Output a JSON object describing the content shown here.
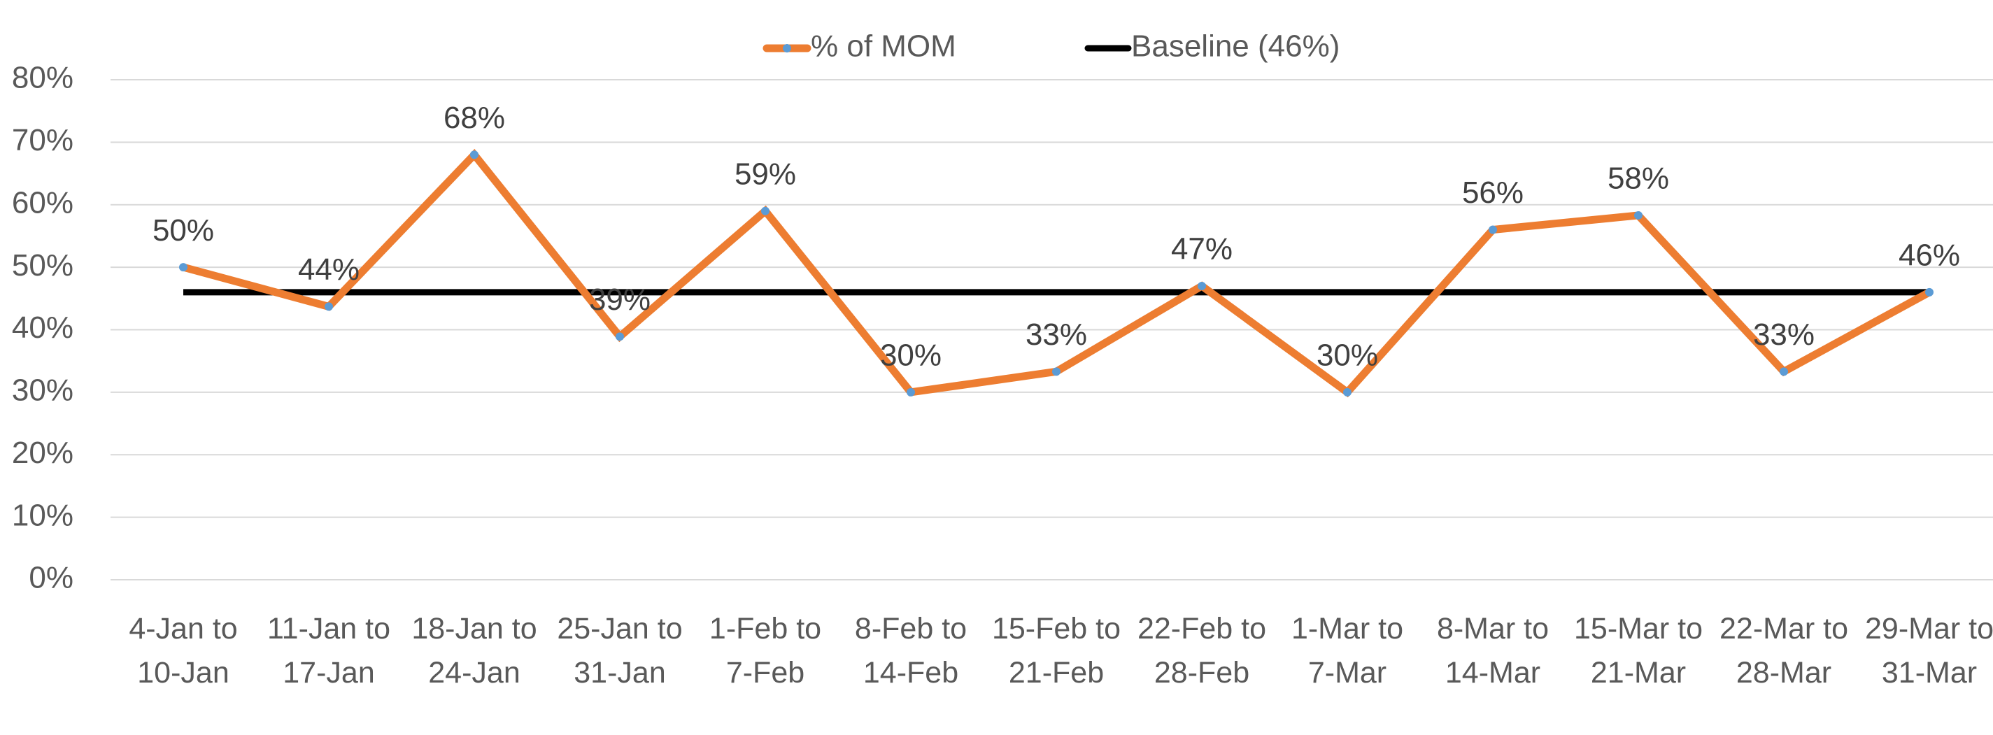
{
  "chart_data": {
    "type": "line",
    "categories": [
      "4-Jan to 10-Jan",
      "11-Jan to 17-Jan",
      "18-Jan to 24-Jan",
      "25-Jan to 31-Jan",
      "1-Feb to 7-Feb",
      "8-Feb to 14-Feb",
      "15-Feb to 21-Feb",
      "22-Feb to 28-Feb",
      "1-Mar to 7-Mar",
      "8-Mar to 14-Mar",
      "15-Mar to 21-Mar",
      "22-Mar to 28-Mar",
      "29-Mar to 31-Mar"
    ],
    "series": [
      {
        "name": "% of MOM",
        "color": "#ed7d31",
        "marker_color": "#5b9bd5",
        "values": [
          50,
          43.7,
          68,
          38.9,
          59,
          30,
          33.3,
          47,
          30,
          56,
          58.3,
          33.3,
          46
        ],
        "value_labels": [
          "50%",
          "44%",
          "68%",
          "39%",
          "59%",
          "30%",
          "33%",
          "47%",
          "30%",
          "56%",
          "58%",
          "33%",
          "46%"
        ]
      },
      {
        "name": "Baseline (46%)",
        "color": "#000000",
        "values": [
          46,
          46,
          46,
          46,
          46,
          46,
          46,
          46,
          46,
          46,
          46,
          46,
          46
        ]
      }
    ],
    "ylim": [
      0,
      80
    ],
    "yticks": [
      {
        "value": 0,
        "label": "0%"
      },
      {
        "value": 10,
        "label": "10%"
      },
      {
        "value": 20,
        "label": "20%"
      },
      {
        "value": 30,
        "label": "30%"
      },
      {
        "value": 40,
        "label": "40%"
      },
      {
        "value": 50,
        "label": "50%"
      },
      {
        "value": 60,
        "label": "60%"
      },
      {
        "value": 70,
        "label": "70%"
      },
      {
        "value": 80,
        "label": "80%"
      }
    ],
    "grid": true,
    "legend": "top"
  }
}
